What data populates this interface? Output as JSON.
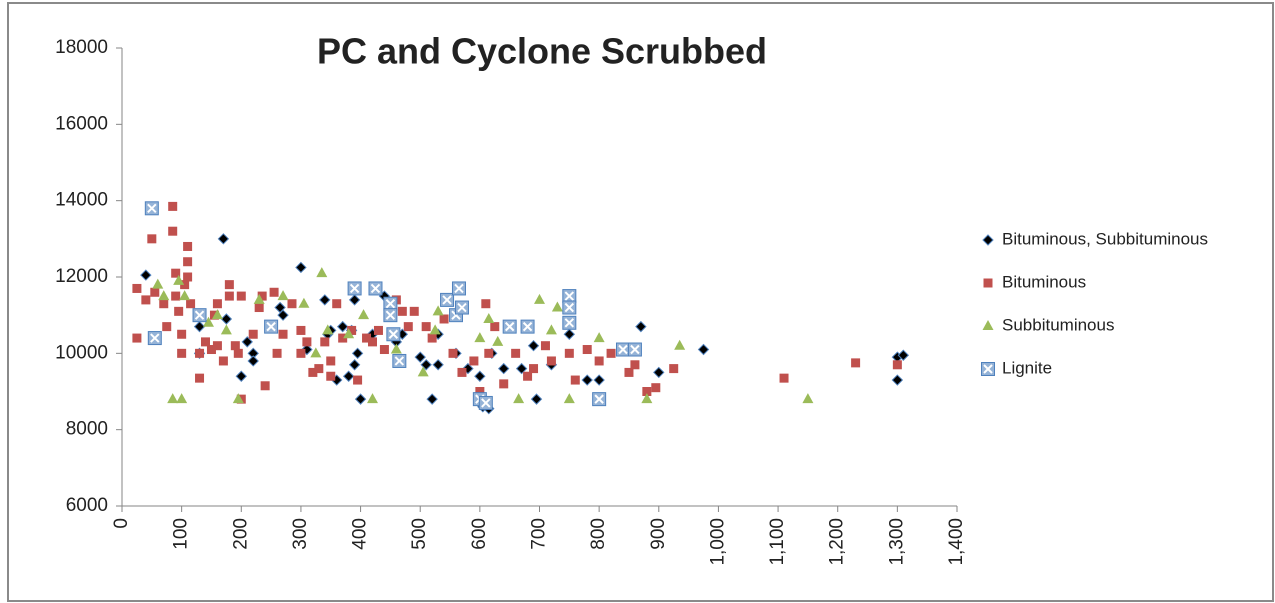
{
  "chart_data": {
    "type": "scatter",
    "title": "PC and Cyclone Scrubbed",
    "xlim": [
      0,
      1400
    ],
    "xticks": [
      0,
      100,
      200,
      300,
      400,
      500,
      600,
      700,
      800,
      900,
      {
        "value": 1000,
        "label": "1,000"
      },
      {
        "value": 1100,
        "label": "1,100"
      },
      {
        "value": 1200,
        "label": "1,200"
      },
      {
        "value": 1300,
        "label": "1,300"
      },
      {
        "value": 1400,
        "label": "1,400"
      }
    ],
    "ylim": [
      6000,
      18000
    ],
    "yticks": [
      6000,
      8000,
      10000,
      12000,
      14000,
      16000,
      18000
    ],
    "legend": "right",
    "series": [
      {
        "name": "Bituminous, Subbituminous",
        "color": "#000000",
        "marker": "diamond",
        "x": [
          40,
          130,
          130,
          170,
          175,
          200,
          210,
          220,
          220,
          265,
          270,
          300,
          310,
          340,
          345,
          350,
          360,
          370,
          380,
          385,
          390,
          390,
          395,
          400,
          420,
          440,
          460,
          470,
          500,
          510,
          520,
          530,
          530,
          560,
          580,
          600,
          605,
          615,
          620,
          640,
          670,
          690,
          695,
          720,
          750,
          780,
          800,
          870,
          900,
          975,
          1300,
          1300,
          1310
        ],
        "values": [
          12050,
          10700,
          10000,
          13000,
          10900,
          9400,
          10300,
          10000,
          9800,
          11200,
          11000,
          12250,
          10100,
          11400,
          10500,
          10600,
          9300,
          10700,
          9400,
          10600,
          9700,
          11400,
          10000,
          8800,
          10500,
          11500,
          10300,
          10500,
          9900,
          9700,
          8800,
          10500,
          9700,
          10000,
          9600,
          9400,
          8600,
          8550,
          10000,
          9600,
          9600,
          10200,
          8800,
          9700,
          10500,
          9300,
          9300,
          10700,
          9500,
          10100,
          9300,
          9900,
          9950
        ]
      },
      {
        "name": "Bituminous",
        "color": "#c0504d",
        "marker": "square",
        "x": [
          25,
          25,
          40,
          50,
          55,
          70,
          75,
          85,
          85,
          90,
          90,
          95,
          100,
          100,
          105,
          110,
          110,
          110,
          115,
          130,
          130,
          140,
          150,
          155,
          160,
          160,
          170,
          180,
          180,
          190,
          195,
          200,
          200,
          220,
          230,
          235,
          240,
          255,
          260,
          270,
          285,
          300,
          300,
          310,
          320,
          330,
          340,
          350,
          350,
          360,
          370,
          385,
          395,
          410,
          420,
          430,
          440,
          460,
          470,
          480,
          490,
          510,
          520,
          540,
          555,
          570,
          590,
          600,
          610,
          615,
          625,
          640,
          660,
          680,
          690,
          710,
          720,
          750,
          760,
          780,
          800,
          820,
          850,
          860,
          880,
          895,
          925,
          1110,
          1230,
          1300
        ],
        "values": [
          11700,
          10400,
          11400,
          13000,
          11600,
          11300,
          10700,
          13850,
          13200,
          12100,
          11500,
          11100,
          10500,
          10000,
          11800,
          12800,
          12400,
          12000,
          11300,
          9350,
          10000,
          10300,
          10100,
          11000,
          11300,
          10200,
          9800,
          11800,
          11500,
          10200,
          10000,
          11500,
          8800,
          10500,
          11200,
          11500,
          9150,
          11600,
          10000,
          10500,
          11300,
          10600,
          10000,
          10300,
          9500,
          9600,
          10300,
          9400,
          9800,
          11300,
          10400,
          10600,
          9300,
          10400,
          10300,
          10600,
          10100,
          11400,
          11100,
          10700,
          11100,
          10700,
          10400,
          10900,
          10000,
          9500,
          9800,
          9000,
          11300,
          10000,
          10700,
          9200,
          10000,
          9400,
          9600,
          10200,
          9800,
          10000,
          9300,
          10100,
          9800,
          10000,
          9500,
          9700,
          9000,
          9100,
          9600,
          9350,
          9750,
          9700
        ]
      },
      {
        "name": "Subbituminous",
        "color": "#9bbb59",
        "marker": "triangle",
        "x": [
          60,
          70,
          85,
          95,
          100,
          105,
          145,
          160,
          175,
          195,
          230,
          270,
          305,
          325,
          335,
          345,
          380,
          405,
          420,
          460,
          505,
          525,
          530,
          600,
          615,
          630,
          665,
          700,
          720,
          730,
          750,
          800,
          880,
          935,
          1150
        ],
        "values": [
          11800,
          11500,
          8800,
          11900,
          8800,
          11500,
          10800,
          11000,
          10600,
          8800,
          11400,
          11500,
          11300,
          10000,
          12100,
          10600,
          10500,
          11000,
          8800,
          10100,
          9500,
          10600,
          11100,
          10400,
          10900,
          10300,
          8800,
          11400,
          10600,
          11200,
          8800,
          10400,
          8800,
          10200,
          8800
        ]
      },
      {
        "name": "Lignite",
        "color": "#4f81bd",
        "marker": "xbox",
        "x": [
          50,
          55,
          130,
          250,
          390,
          425,
          450,
          450,
          455,
          465,
          545,
          560,
          565,
          570,
          600,
          610,
          650,
          680,
          750,
          750,
          750,
          800,
          840,
          860
        ],
        "values": [
          13800,
          10400,
          11000,
          10700,
          11700,
          11700,
          11300,
          11000,
          10500,
          9800,
          11400,
          11000,
          11700,
          11200,
          8800,
          8700,
          10700,
          10700,
          11500,
          11200,
          10800,
          8800,
          10100,
          10100
        ]
      }
    ]
  }
}
